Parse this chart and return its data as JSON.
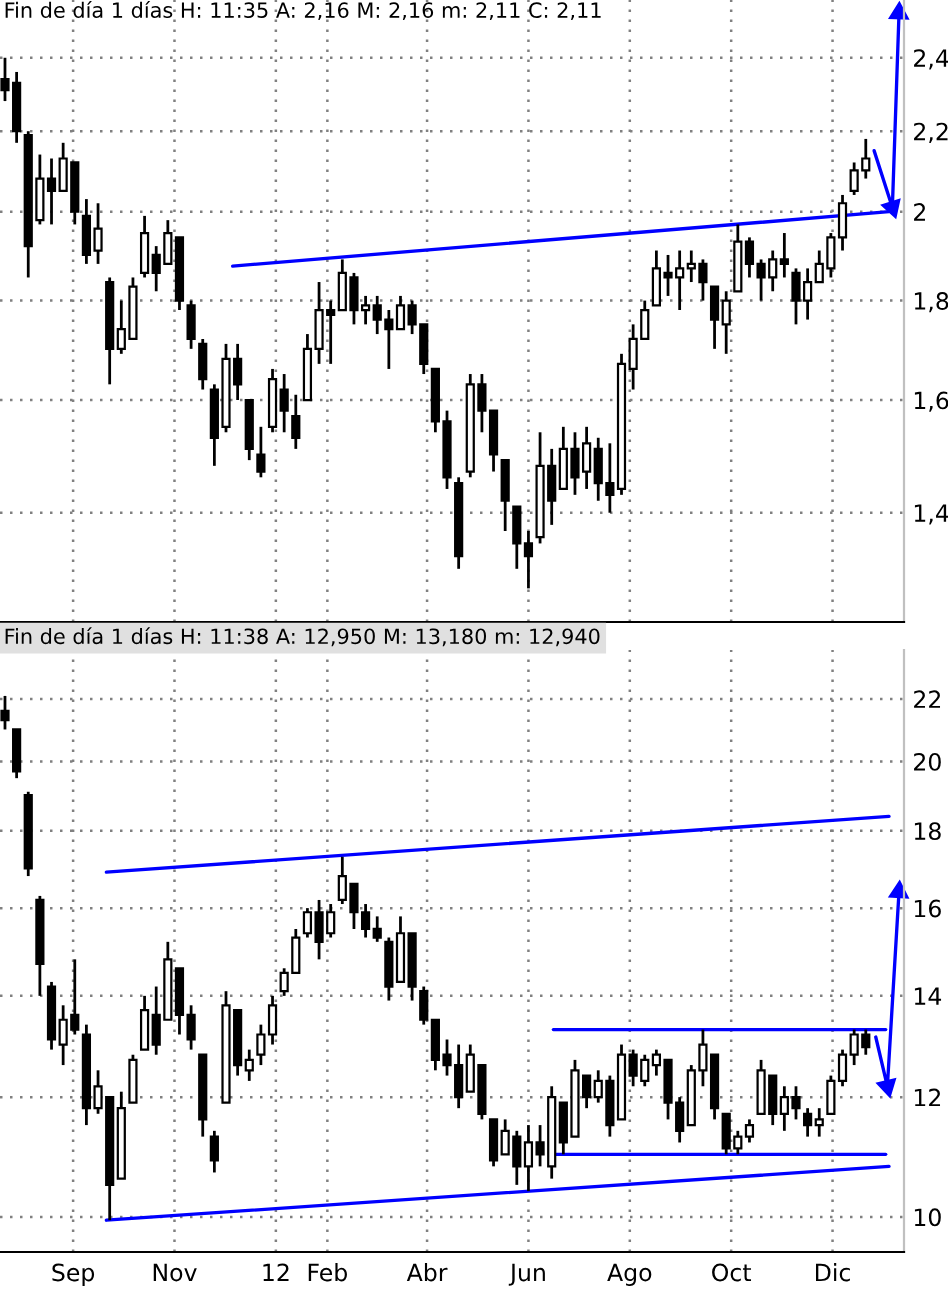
{
  "chart_data": [
    {
      "type": "candlestick",
      "title": "Fin de día 1 días H: 11:35 A: 2,16 M: 2,16 m: 2,11 C: 2,11",
      "color": "#000000",
      "x": [
        "2011-07-22",
        "2011-07-29",
        "2011-08-05",
        "2011-08-12",
        "2011-08-19",
        "2011-08-26",
        "2011-09-02",
        "2011-09-09",
        "2011-09-16",
        "2011-09-23",
        "2011-09-30",
        "2011-10-07",
        "2011-10-14",
        "2011-10-21",
        "2011-10-28",
        "2011-11-04",
        "2011-11-11",
        "2011-11-18",
        "2011-11-25",
        "2011-12-02",
        "2011-12-09",
        "2011-12-16",
        "2011-12-23",
        "2011-12-30",
        "2012-01-06",
        "2012-01-13",
        "2012-01-20",
        "2012-01-27",
        "2012-02-03",
        "2012-02-10",
        "2012-02-17",
        "2012-02-24",
        "2012-03-02",
        "2012-03-09",
        "2012-03-16",
        "2012-03-23",
        "2012-03-30",
        "2012-04-06",
        "2012-04-13",
        "2012-04-20",
        "2012-04-27",
        "2012-05-04",
        "2012-05-11",
        "2012-05-18",
        "2012-05-25",
        "2012-06-01",
        "2012-06-08",
        "2012-06-15",
        "2012-06-22",
        "2012-06-29",
        "2012-07-06",
        "2012-07-13",
        "2012-07-20",
        "2012-07-27",
        "2012-08-03",
        "2012-08-10",
        "2012-08-17",
        "2012-08-24",
        "2012-08-31",
        "2012-09-07",
        "2012-09-14",
        "2012-09-21",
        "2012-09-28",
        "2012-10-05",
        "2012-10-12",
        "2012-10-19",
        "2012-10-26",
        "2012-11-02",
        "2012-11-09",
        "2012-11-16",
        "2012-11-23",
        "2012-11-30",
        "2012-12-07",
        "2012-12-14",
        "2012-12-21"
      ],
      "ohlc": [
        [
          2.34,
          2.4,
          2.28,
          2.31
        ],
        [
          2.33,
          2.36,
          2.17,
          2.2
        ],
        [
          2.19,
          2.2,
          1.85,
          1.92
        ],
        [
          1.98,
          2.14,
          1.97,
          2.08
        ],
        [
          2.08,
          2.13,
          1.97,
          2.05
        ],
        [
          2.05,
          2.17,
          2.05,
          2.13
        ],
        [
          2.12,
          2.12,
          1.97,
          2.0
        ],
        [
          1.99,
          2.03,
          1.88,
          1.9
        ],
        [
          1.91,
          2.02,
          1.88,
          1.96
        ],
        [
          1.84,
          1.85,
          1.63,
          1.7
        ],
        [
          1.7,
          1.8,
          1.69,
          1.74
        ],
        [
          1.72,
          1.85,
          1.72,
          1.83
        ],
        [
          1.86,
          1.99,
          1.85,
          1.95
        ],
        [
          1.9,
          1.92,
          1.82,
          1.86
        ],
        [
          1.88,
          1.98,
          1.88,
          1.95
        ],
        [
          1.94,
          1.94,
          1.78,
          1.8
        ],
        [
          1.79,
          1.8,
          1.7,
          1.72
        ],
        [
          1.71,
          1.72,
          1.62,
          1.64
        ],
        [
          1.62,
          1.63,
          1.48,
          1.53
        ],
        [
          1.55,
          1.71,
          1.54,
          1.68
        ],
        [
          1.68,
          1.71,
          1.6,
          1.63
        ],
        [
          1.6,
          1.6,
          1.49,
          1.51
        ],
        [
          1.5,
          1.55,
          1.46,
          1.47
        ],
        [
          1.55,
          1.66,
          1.54,
          1.64
        ],
        [
          1.62,
          1.65,
          1.54,
          1.58
        ],
        [
          1.57,
          1.61,
          1.51,
          1.53
        ],
        [
          1.6,
          1.73,
          1.6,
          1.7
        ],
        [
          1.7,
          1.84,
          1.67,
          1.78
        ],
        [
          1.78,
          1.8,
          1.67,
          1.77
        ],
        [
          1.78,
          1.89,
          1.78,
          1.86
        ],
        [
          1.85,
          1.86,
          1.75,
          1.78
        ],
        [
          1.78,
          1.81,
          1.75,
          1.79
        ],
        [
          1.79,
          1.81,
          1.73,
          1.76
        ],
        [
          1.76,
          1.78,
          1.66,
          1.74
        ],
        [
          1.74,
          1.81,
          1.74,
          1.79
        ],
        [
          1.79,
          1.8,
          1.73,
          1.75
        ],
        [
          1.75,
          1.75,
          1.65,
          1.67
        ],
        [
          1.66,
          1.66,
          1.54,
          1.56
        ],
        [
          1.56,
          1.58,
          1.44,
          1.46
        ],
        [
          1.45,
          1.46,
          1.31,
          1.33
        ],
        [
          1.47,
          1.65,
          1.46,
          1.63
        ],
        [
          1.63,
          1.65,
          1.54,
          1.58
        ],
        [
          1.58,
          1.58,
          1.47,
          1.5
        ],
        [
          1.49,
          1.49,
          1.37,
          1.42
        ],
        [
          1.41,
          1.41,
          1.31,
          1.35
        ],
        [
          1.35,
          1.37,
          1.28,
          1.33
        ],
        [
          1.36,
          1.54,
          1.35,
          1.48
        ],
        [
          1.48,
          1.51,
          1.38,
          1.42
        ],
        [
          1.44,
          1.55,
          1.44,
          1.51
        ],
        [
          1.51,
          1.54,
          1.43,
          1.46
        ],
        [
          1.47,
          1.55,
          1.44,
          1.52
        ],
        [
          1.51,
          1.53,
          1.42,
          1.45
        ],
        [
          1.45,
          1.52,
          1.4,
          1.43
        ],
        [
          1.44,
          1.69,
          1.43,
          1.67
        ],
        [
          1.66,
          1.75,
          1.62,
          1.72
        ],
        [
          1.72,
          1.8,
          1.72,
          1.78
        ],
        [
          1.79,
          1.91,
          1.79,
          1.87
        ],
        [
          1.86,
          1.9,
          1.81,
          1.85
        ],
        [
          1.85,
          1.91,
          1.78,
          1.87
        ],
        [
          1.87,
          1.91,
          1.84,
          1.88
        ],
        [
          1.88,
          1.89,
          1.8,
          1.84
        ],
        [
          1.83,
          1.83,
          1.7,
          1.76
        ],
        [
          1.75,
          1.82,
          1.69,
          1.8
        ],
        [
          1.82,
          1.97,
          1.82,
          1.93
        ],
        [
          1.93,
          1.94,
          1.85,
          1.88
        ],
        [
          1.88,
          1.89,
          1.8,
          1.85
        ],
        [
          1.85,
          1.91,
          1.82,
          1.89
        ],
        [
          1.89,
          1.95,
          1.85,
          1.88
        ],
        [
          1.86,
          1.87,
          1.75,
          1.8
        ],
        [
          1.8,
          1.87,
          1.76,
          1.84
        ],
        [
          1.84,
          1.91,
          1.84,
          1.88
        ],
        [
          1.87,
          1.95,
          1.85,
          1.94
        ],
        [
          1.94,
          2.04,
          1.91,
          2.02
        ],
        [
          2.05,
          2.12,
          2.04,
          2.1
        ],
        [
          2.1,
          2.18,
          2.08,
          2.13
        ]
      ],
      "series": [
        {
          "type": "line",
          "color": "#0000ff",
          "x": [
            "2011-12-06",
            "2013-01-04"
          ],
          "values": [
            1.875,
            2.0
          ]
        },
        {
          "type": "line",
          "color": "#0000ff",
          "marker": "triangle",
          "x": [
            "2012-12-26",
            "2013-01-06",
            "2013-01-10"
          ],
          "values": [
            2.15,
            2.01,
            2.53
          ]
        }
      ],
      "xlim": [
        "2011-07-19",
        "2013-01-13"
      ],
      "ylim": [
        1.23,
        2.57
      ],
      "log": true,
      "grid": true,
      "tick_labels": "y",
      "xticks": [
        {
          "value": "2011-09-01",
          "label": null
        },
        {
          "value": "2011-11-01",
          "label": null
        },
        {
          "value": "2012-01-01",
          "label": null
        },
        {
          "value": "2012-02-01",
          "label": null
        },
        {
          "value": "2012-04-01",
          "label": null
        },
        {
          "value": "2012-06-01",
          "label": null
        },
        {
          "value": "2012-08-01",
          "label": null
        },
        {
          "value": "2012-10-01",
          "label": null
        },
        {
          "value": "2012-12-01",
          "label": null
        }
      ],
      "yticks": [
        {
          "value": 1.4,
          "label": "1,4"
        },
        {
          "value": 1.6,
          "label": "1,6"
        },
        {
          "value": 1.8,
          "label": "1,8"
        },
        2,
        {
          "value": 2.2,
          "label": "2,2"
        },
        {
          "value": 2.4,
          "label": "2,4"
        }
      ]
    },
    {
      "type": "candlestick",
      "title": "Fin de día 1 días H: 11:38 A: 12,950 M: 13,180 m: 12,940",
      "color": "#000000",
      "x": [
        "2011-07-22",
        "2011-07-29",
        "2011-08-05",
        "2011-08-12",
        "2011-08-19",
        "2011-08-26",
        "2011-09-02",
        "2011-09-09",
        "2011-09-16",
        "2011-09-23",
        "2011-09-30",
        "2011-10-07",
        "2011-10-14",
        "2011-10-21",
        "2011-10-28",
        "2011-11-04",
        "2011-11-11",
        "2011-11-18",
        "2011-11-25",
        "2011-12-02",
        "2011-12-09",
        "2011-12-16",
        "2011-12-23",
        "2011-12-30",
        "2012-01-06",
        "2012-01-13",
        "2012-01-20",
        "2012-01-27",
        "2012-02-03",
        "2012-02-10",
        "2012-02-17",
        "2012-02-24",
        "2012-03-02",
        "2012-03-09",
        "2012-03-16",
        "2012-03-23",
        "2012-03-30",
        "2012-04-06",
        "2012-04-13",
        "2012-04-20",
        "2012-04-27",
        "2012-05-04",
        "2012-05-11",
        "2012-05-18",
        "2012-05-25",
        "2012-06-01",
        "2012-06-08",
        "2012-06-15",
        "2012-06-22",
        "2012-06-29",
        "2012-07-06",
        "2012-07-13",
        "2012-07-20",
        "2012-07-27",
        "2012-08-03",
        "2012-08-10",
        "2012-08-17",
        "2012-08-24",
        "2012-08-31",
        "2012-09-07",
        "2012-09-14",
        "2012-09-21",
        "2012-09-28",
        "2012-10-05",
        "2012-10-12",
        "2012-10-19",
        "2012-10-26",
        "2012-11-02",
        "2012-11-09",
        "2012-11-16",
        "2012-11-23",
        "2012-11-30",
        "2012-12-07",
        "2012-12-14",
        "2012-12-21"
      ],
      "ohlc": [
        [
          21.6,
          22.1,
          21.0,
          21.3
        ],
        [
          21.0,
          21.0,
          19.5,
          19.7
        ],
        [
          19.0,
          19.1,
          16.8,
          17.0
        ],
        [
          16.2,
          16.3,
          14.0,
          14.7
        ],
        [
          14.2,
          14.3,
          12.9,
          13.1
        ],
        [
          13.0,
          13.8,
          12.6,
          13.5
        ],
        [
          13.6,
          14.8,
          13.2,
          13.3
        ],
        [
          13.2,
          13.4,
          11.5,
          11.8
        ],
        [
          11.8,
          12.5,
          11.7,
          12.2
        ],
        [
          12.0,
          12.0,
          9.95,
          10.5
        ],
        [
          10.6,
          12.1,
          10.6,
          11.8
        ],
        [
          11.9,
          12.8,
          11.9,
          12.7
        ],
        [
          12.9,
          14.0,
          12.9,
          13.7
        ],
        [
          13.6,
          14.2,
          12.8,
          13.0
        ],
        [
          13.5,
          15.2,
          13.5,
          14.8
        ],
        [
          14.6,
          14.6,
          13.2,
          13.6
        ],
        [
          13.6,
          13.8,
          12.9,
          13.1
        ],
        [
          12.8,
          12.8,
          11.3,
          11.6
        ],
        [
          11.3,
          11.4,
          10.7,
          10.9
        ],
        [
          11.9,
          14.1,
          11.9,
          13.8
        ],
        [
          13.7,
          13.7,
          12.4,
          12.6
        ],
        [
          12.5,
          12.9,
          12.3,
          12.7
        ],
        [
          12.8,
          13.4,
          12.6,
          13.2
        ],
        [
          13.2,
          14.0,
          13.0,
          13.8
        ],
        [
          14.1,
          14.6,
          14.0,
          14.5
        ],
        [
          14.5,
          15.5,
          14.5,
          15.3
        ],
        [
          15.4,
          16.0,
          15.3,
          15.9
        ],
        [
          15.9,
          16.2,
          14.8,
          15.2
        ],
        [
          15.4,
          16.1,
          15.3,
          15.9
        ],
        [
          16.2,
          17.3,
          16.1,
          16.8
        ],
        [
          16.6,
          16.6,
          15.5,
          15.9
        ],
        [
          15.9,
          16.1,
          15.3,
          15.5
        ],
        [
          15.5,
          15.8,
          15.2,
          15.3
        ],
        [
          15.2,
          15.3,
          13.9,
          14.2
        ],
        [
          14.3,
          15.8,
          14.3,
          15.4
        ],
        [
          15.4,
          15.4,
          13.9,
          14.2
        ],
        [
          14.1,
          14.2,
          13.4,
          13.5
        ],
        [
          13.5,
          13.5,
          12.5,
          12.7
        ],
        [
          12.8,
          13.1,
          12.4,
          12.6
        ],
        [
          12.6,
          13.0,
          11.8,
          12.0
        ],
        [
          12.1,
          13.0,
          12.1,
          12.8
        ],
        [
          12.6,
          12.6,
          11.6,
          11.7
        ],
        [
          11.6,
          11.6,
          10.8,
          10.9
        ],
        [
          11.0,
          11.6,
          11.0,
          11.4
        ],
        [
          11.3,
          11.4,
          10.5,
          10.8
        ],
        [
          10.8,
          11.5,
          10.4,
          11.2
        ],
        [
          11.2,
          11.5,
          10.8,
          11.0
        ],
        [
          10.8,
          12.2,
          10.6,
          12.0
        ],
        [
          11.9,
          11.9,
          11.0,
          11.2
        ],
        [
          11.3,
          12.7,
          11.3,
          12.5
        ],
        [
          12.4,
          12.4,
          11.8,
          12.0
        ],
        [
          12.0,
          12.5,
          11.9,
          12.3
        ],
        [
          12.3,
          12.4,
          11.3,
          11.5
        ],
        [
          11.6,
          13.0,
          11.6,
          12.8
        ],
        [
          12.8,
          12.9,
          12.2,
          12.4
        ],
        [
          12.3,
          12.8,
          12.2,
          12.7
        ],
        [
          12.6,
          12.9,
          12.4,
          12.8
        ],
        [
          12.7,
          12.7,
          11.6,
          11.9
        ],
        [
          11.9,
          12.0,
          11.2,
          11.4
        ],
        [
          11.5,
          12.6,
          11.5,
          12.5
        ],
        [
          12.5,
          13.3,
          12.2,
          13.0
        ],
        [
          12.8,
          12.8,
          11.6,
          11.8
        ],
        [
          11.7,
          11.7,
          11.0,
          11.1
        ],
        [
          11.1,
          11.4,
          11.0,
          11.3
        ],
        [
          11.3,
          11.6,
          11.2,
          11.5
        ],
        [
          11.7,
          12.7,
          11.7,
          12.5
        ],
        [
          12.4,
          12.4,
          11.5,
          11.7
        ],
        [
          11.7,
          12.2,
          11.4,
          12.0
        ],
        [
          12.0,
          12.2,
          11.6,
          11.8
        ],
        [
          11.7,
          11.8,
          11.3,
          11.5
        ],
        [
          11.5,
          11.8,
          11.3,
          11.6
        ],
        [
          11.7,
          12.4,
          11.7,
          12.3
        ],
        [
          12.3,
          12.9,
          12.2,
          12.8
        ],
        [
          12.8,
          13.3,
          12.6,
          13.2
        ],
        [
          13.2,
          13.3,
          12.8,
          12.95
        ]
      ],
      "series": [
        {
          "type": "line",
          "color": "#0000ff",
          "x": [
            "2011-09-21",
            "2013-01-04"
          ],
          "values": [
            16.9,
            18.4
          ]
        },
        {
          "type": "line",
          "color": "#0000ff",
          "x": [
            "2011-09-21",
            "2013-01-04"
          ],
          "values": [
            9.95,
            10.8
          ]
        },
        {
          "type": "line",
          "color": "#0000ff",
          "x": [
            "2012-06-16",
            "2013-01-02"
          ],
          "values": [
            13.3,
            13.3
          ]
        },
        {
          "type": "line",
          "color": "#0000ff",
          "x": [
            "2012-06-16",
            "2013-01-02"
          ],
          "values": [
            11.0,
            11.0
          ]
        },
        {
          "type": "line",
          "color": "#0000ff",
          "marker": "triangle",
          "x": [
            "2012-12-27",
            "2013-01-03",
            "2013-01-10"
          ],
          "values": [
            13.15,
            12.2,
            16.4
          ]
        }
      ],
      "xlim": [
        "2011-07-19",
        "2013-01-13"
      ],
      "ylim": [
        9.48,
        23.7
      ],
      "log": true,
      "grid": true,
      "xticks": [
        {
          "value": "2011-09-01",
          "label": "Sep"
        },
        {
          "value": "2011-11-01",
          "label": "Nov"
        },
        {
          "value": "2012-01-01",
          "label": "12"
        },
        {
          "value": "2012-02-01",
          "label": "Feb"
        },
        {
          "value": "2012-04-01",
          "label": "Abr"
        },
        {
          "value": "2012-06-01",
          "label": "Jun"
        },
        {
          "value": "2012-08-01",
          "label": "Ago"
        },
        {
          "value": "2012-10-01",
          "label": "Oct"
        },
        {
          "value": "2012-12-01",
          "label": "Dic"
        }
      ],
      "yticks": [
        10,
        12,
        14,
        16,
        18,
        20,
        22
      ]
    }
  ]
}
